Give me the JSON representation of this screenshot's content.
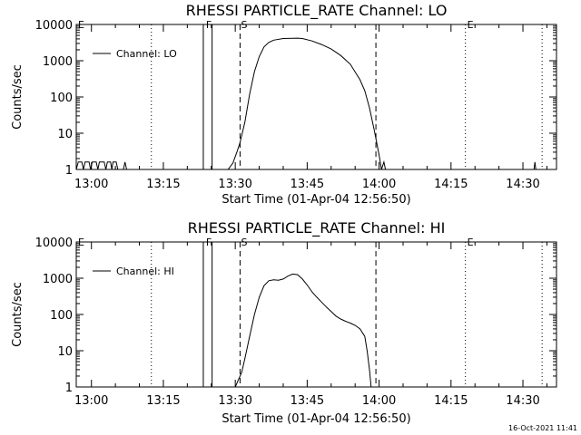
{
  "timestamp": "16-Oct-2021 11:41",
  "chart_data": [
    {
      "type": "line",
      "title": "RHESSI PARTICLE_RATE Channel: LO",
      "xlabel": "Start Time (01-Apr-04 12:56:50)",
      "ylabel": "Counts/sec",
      "y_scale": "log",
      "ylim": [
        1,
        10000
      ],
      "xlim": [
        "12:56:50",
        "14:37:00"
      ],
      "x_tick_labels": [
        "13:00",
        "13:15",
        "13:30",
        "13:45",
        "14:00",
        "14:15",
        "14:30"
      ],
      "y_tick_labels": [
        "1",
        "10",
        "100",
        "1000",
        "10000"
      ],
      "legend_position": "top-left",
      "series": [
        {
          "name": "Channel: LO",
          "points": [
            [
              "12:56:50",
              1
            ],
            [
              "12:57:15",
              1.6
            ],
            [
              "12:58:00",
              1.6
            ],
            [
              "12:58:20",
              1
            ],
            [
              "12:58:40",
              1.6
            ],
            [
              "12:59:30",
              1.6
            ],
            [
              "12:59:50",
              1
            ],
            [
              "13:00:10",
              1.6
            ],
            [
              "13:01:00",
              1.6
            ],
            [
              "13:01:20",
              1
            ],
            [
              "13:01:40",
              1.6
            ],
            [
              "13:02:40",
              1.6
            ],
            [
              "13:03:00",
              1
            ],
            [
              "13:03:20",
              1.6
            ],
            [
              "13:04:00",
              1.6
            ],
            [
              "13:04:15",
              1
            ],
            [
              "13:04:30",
              1.6
            ],
            [
              "13:05:10",
              1.6
            ],
            [
              "13:05:30",
              1
            ],
            [
              "13:06:40",
              1
            ],
            [
              "13:07:00",
              1.6
            ],
            [
              "13:07:20",
              1
            ],
            [
              "13:28:30",
              1
            ],
            [
              "13:29:30",
              1.5
            ],
            [
              "13:30:20",
              3
            ],
            [
              "13:31:00",
              5.5
            ],
            [
              "13:32:00",
              20
            ],
            [
              "13:33:00",
              120
            ],
            [
              "13:34:00",
              500
            ],
            [
              "13:35:00",
              1300
            ],
            [
              "13:36:00",
              2400
            ],
            [
              "13:37:00",
              3200
            ],
            [
              "13:38:00",
              3700
            ],
            [
              "13:40:00",
              4100
            ],
            [
              "13:43:00",
              4200
            ],
            [
              "13:44:00",
              4100
            ],
            [
              "13:46:00",
              3500
            ],
            [
              "13:48:00",
              2800
            ],
            [
              "13:50:00",
              2100
            ],
            [
              "13:52:00",
              1400
            ],
            [
              "13:54:00",
              800
            ],
            [
              "13:56:00",
              300
            ],
            [
              "13:57:00",
              150
            ],
            [
              "13:58:00",
              50
            ],
            [
              "13:59:00",
              12
            ],
            [
              "14:00:00",
              2.5
            ],
            [
              "14:00:30",
              1
            ],
            [
              "14:01:00",
              1.6
            ],
            [
              "14:01:20",
              1
            ]
          ]
        }
      ],
      "annotations": [
        {
          "text": "E",
          "time": "12:56:50"
        },
        {
          "text": "F",
          "time": "13:23:30"
        },
        {
          "text": "S",
          "time": "13:30:50"
        },
        {
          "text": "E",
          "time": "14:18:00"
        }
      ],
      "vertical_lines": [
        {
          "time": "13:12:30",
          "style": "dotted"
        },
        {
          "time": "13:23:20",
          "style": "solid"
        },
        {
          "time": "13:25:10",
          "style": "solid"
        },
        {
          "time": "13:31:00",
          "style": "dashed"
        },
        {
          "time": "13:59:20",
          "style": "dashed"
        },
        {
          "time": "14:18:00",
          "style": "dotted"
        },
        {
          "time": "14:34:00",
          "style": "dotted"
        }
      ],
      "extra_marks": [
        {
          "time": "14:32:30",
          "value": 1.6
        }
      ]
    },
    {
      "type": "line",
      "title": "RHESSI PARTICLE_RATE Channel: HI",
      "xlabel": "Start Time (01-Apr-04 12:56:50)",
      "ylabel": "Counts/sec",
      "y_scale": "log",
      "ylim": [
        1,
        10000
      ],
      "xlim": [
        "12:56:50",
        "14:37:00"
      ],
      "x_tick_labels": [
        "13:00",
        "13:15",
        "13:30",
        "13:45",
        "14:00",
        "14:15",
        "14:30"
      ],
      "y_tick_labels": [
        "1",
        "10",
        "100",
        "1000",
        "10000"
      ],
      "legend_position": "top-left",
      "series": [
        {
          "name": "Channel: HI",
          "points": [
            [
              "13:30:00",
              1
            ],
            [
              "13:30:40",
              1.6
            ],
            [
              "13:31:20",
              2.5
            ],
            [
              "13:32:00",
              6
            ],
            [
              "13:33:00",
              25
            ],
            [
              "13:34:00",
              100
            ],
            [
              "13:35:00",
              300
            ],
            [
              "13:36:00",
              620
            ],
            [
              "13:37:00",
              850
            ],
            [
              "13:38:00",
              900
            ],
            [
              "13:39:00",
              880
            ],
            [
              "13:40:00",
              950
            ],
            [
              "13:41:00",
              1150
            ],
            [
              "13:42:00",
              1300
            ],
            [
              "13:43:00",
              1250
            ],
            [
              "13:44:00",
              950
            ],
            [
              "13:45:00",
              650
            ],
            [
              "13:46:00",
              420
            ],
            [
              "13:47:00",
              300
            ],
            [
              "13:48:00",
              220
            ],
            [
              "13:49:00",
              160
            ],
            [
              "13:50:00",
              120
            ],
            [
              "13:51:00",
              90
            ],
            [
              "13:52:00",
              75
            ],
            [
              "13:53:00",
              65
            ],
            [
              "13:54:00",
              58
            ],
            [
              "13:55:00",
              50
            ],
            [
              "13:56:00",
              40
            ],
            [
              "13:57:00",
              25
            ],
            [
              "13:57:30",
              10
            ],
            [
              "13:58:00",
              3
            ],
            [
              "13:58:20",
              1
            ]
          ]
        }
      ],
      "annotations": [
        {
          "text": "E",
          "time": "12:56:50"
        },
        {
          "text": "F",
          "time": "13:23:30"
        },
        {
          "text": "S",
          "time": "13:30:50"
        },
        {
          "text": "E",
          "time": "14:18:00"
        }
      ],
      "vertical_lines": [
        {
          "time": "13:12:30",
          "style": "dotted"
        },
        {
          "time": "13:23:20",
          "style": "solid"
        },
        {
          "time": "13:25:10",
          "style": "solid"
        },
        {
          "time": "13:31:00",
          "style": "dashed"
        },
        {
          "time": "13:59:20",
          "style": "dashed"
        },
        {
          "time": "14:18:00",
          "style": "dotted"
        },
        {
          "time": "14:34:00",
          "style": "dotted"
        }
      ],
      "extra_marks": []
    }
  ]
}
